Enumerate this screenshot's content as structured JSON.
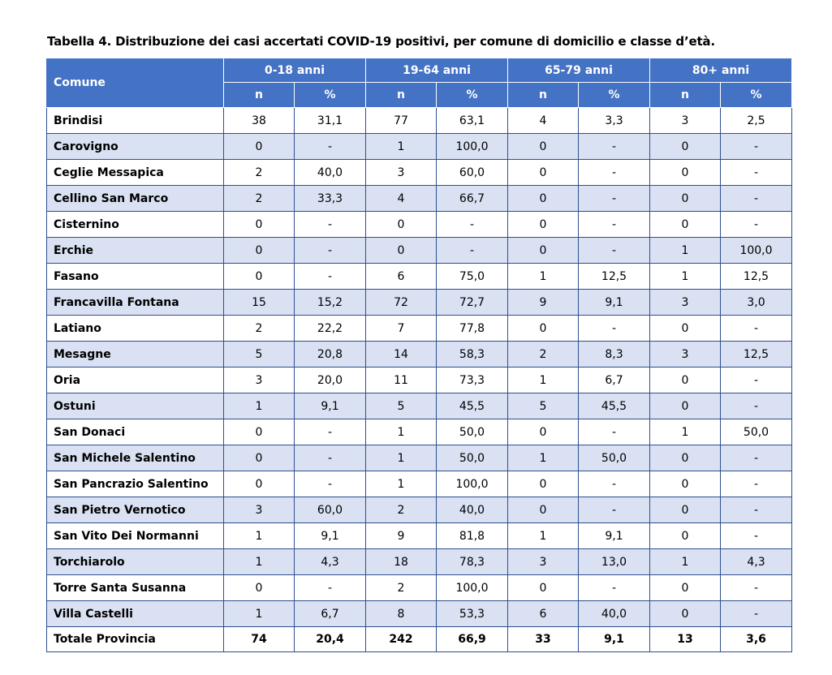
{
  "caption": "Tabella 4. Distribuzione dei casi accertati COVID-19 positivi, per comune di domicilio e classe d’età.",
  "header": {
    "comune": "Comune",
    "groups": [
      "0-18 anni",
      "19-64 anni",
      "65-79 anni",
      "80+ anni"
    ],
    "sub": [
      "n",
      "%",
      "n",
      "%",
      "n",
      "%",
      "n",
      "%"
    ]
  },
  "rows": [
    {
      "name": "Brindisi",
      "cells": [
        "38",
        "31,1",
        "77",
        "63,1",
        "4",
        "3,3",
        "3",
        "2,5"
      ]
    },
    {
      "name": "Carovigno",
      "cells": [
        "0",
        "-",
        "1",
        "100,0",
        "0",
        "-",
        "0",
        "-"
      ]
    },
    {
      "name": "Ceglie Messapica",
      "cells": [
        "2",
        "40,0",
        "3",
        "60,0",
        "0",
        "-",
        "0",
        "-"
      ]
    },
    {
      "name": "Cellino San Marco",
      "cells": [
        "2",
        "33,3",
        "4",
        "66,7",
        "0",
        "-",
        "0",
        "-"
      ]
    },
    {
      "name": "Cisternino",
      "cells": [
        "0",
        "-",
        "0",
        "-",
        "0",
        "-",
        "0",
        "-"
      ]
    },
    {
      "name": "Erchie",
      "cells": [
        "0",
        "-",
        "0",
        "-",
        "0",
        "-",
        "1",
        "100,0"
      ]
    },
    {
      "name": "Fasano",
      "cells": [
        "0",
        "-",
        "6",
        "75,0",
        "1",
        "12,5",
        "1",
        "12,5"
      ]
    },
    {
      "name": "Francavilla Fontana",
      "cells": [
        "15",
        "15,2",
        "72",
        "72,7",
        "9",
        "9,1",
        "3",
        "3,0"
      ]
    },
    {
      "name": "Latiano",
      "cells": [
        "2",
        "22,2",
        "7",
        "77,8",
        "0",
        "-",
        "0",
        "-"
      ]
    },
    {
      "name": "Mesagne",
      "cells": [
        "5",
        "20,8",
        "14",
        "58,3",
        "2",
        "8,3",
        "3",
        "12,5"
      ]
    },
    {
      "name": "Oria",
      "cells": [
        "3",
        "20,0",
        "11",
        "73,3",
        "1",
        "6,7",
        "0",
        "-"
      ]
    },
    {
      "name": "Ostuni",
      "cells": [
        "1",
        "9,1",
        "5",
        "45,5",
        "5",
        "45,5",
        "0",
        "-"
      ]
    },
    {
      "name": "San Donaci",
      "cells": [
        "0",
        "-",
        "1",
        "50,0",
        "0",
        "-",
        "1",
        "50,0"
      ]
    },
    {
      "name": "San Michele Salentino",
      "cells": [
        "0",
        "-",
        "1",
        "50,0",
        "1",
        "50,0",
        "0",
        "-"
      ]
    },
    {
      "name": "San Pancrazio Salentino",
      "cells": [
        "0",
        "-",
        "1",
        "100,0",
        "0",
        "-",
        "0",
        "-"
      ]
    },
    {
      "name": "San Pietro Vernotico",
      "cells": [
        "3",
        "60,0",
        "2",
        "40,0",
        "0",
        "-",
        "0",
        "-"
      ]
    },
    {
      "name": "San Vito Dei Normanni",
      "cells": [
        "1",
        "9,1",
        "9",
        "81,8",
        "1",
        "9,1",
        "0",
        "-"
      ]
    },
    {
      "name": "Torchiarolo",
      "cells": [
        "1",
        "4,3",
        "18",
        "78,3",
        "3",
        "13,0",
        "1",
        "4,3"
      ]
    },
    {
      "name": "Torre Santa Susanna",
      "cells": [
        "0",
        "-",
        "2",
        "100,0",
        "0",
        "-",
        "0",
        "-"
      ]
    },
    {
      "name": "Villa Castelli",
      "cells": [
        "1",
        "6,7",
        "8",
        "53,3",
        "6",
        "40,0",
        "0",
        "-"
      ]
    }
  ],
  "total": {
    "name": "Totale Provincia",
    "cells": [
      "74",
      "20,4",
      "242",
      "66,9",
      "33",
      "9,1",
      "13",
      "3,6"
    ]
  },
  "colors": {
    "header_bg": "#4472c4",
    "header_text": "#ffffff",
    "stripe": "#d9e1f2",
    "border": "#2e4f8f"
  }
}
